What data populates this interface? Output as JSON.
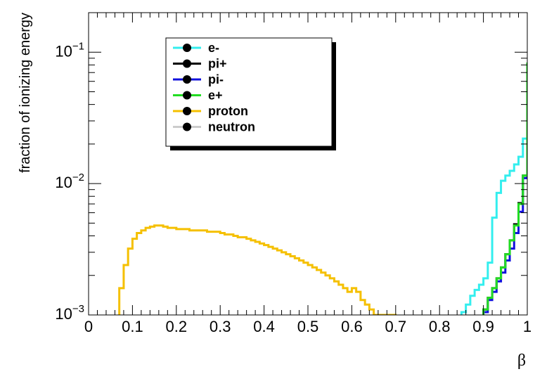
{
  "chart_data": {
    "type": "line",
    "title": "",
    "xlabel": "β",
    "ylabel": "fraction of ionizing energy",
    "x_scale": "linear",
    "y_scale": "log",
    "xlim": [
      0,
      1
    ],
    "ylim": [
      0.001,
      0.2
    ],
    "grid": false,
    "legend_position": "top-left",
    "x_ticks": [
      "0",
      "0.1",
      "0.2",
      "0.3",
      "0.4",
      "0.5",
      "0.6",
      "0.7",
      "0.8",
      "0.9",
      "1"
    ],
    "y_ticks": [
      {
        "value": 0.001,
        "base": "10",
        "exp": "−3"
      },
      {
        "value": 0.01,
        "base": "10",
        "exp": "−2"
      },
      {
        "value": 0.1,
        "base": "10",
        "exp": "−1"
      }
    ],
    "bin_width": 0.01,
    "series": [
      {
        "name": "e-",
        "color": "#33eeee",
        "bins_start": 0.84,
        "values": [
          0.0009,
          0.00105,
          0.0012,
          0.0014,
          0.00155,
          0.0017,
          0.0019,
          0.0025,
          0.0055,
          0.0085,
          0.0105,
          0.0115,
          0.0125,
          0.014,
          0.016,
          0.022,
          0.03,
          0.043,
          0.068,
          0.115
        ]
      },
      {
        "name": "pi+",
        "color": "#000000",
        "bins_start": 0.89,
        "values": [
          0.0009,
          0.0011,
          0.00135,
          0.0016,
          0.0019,
          0.0023,
          0.0029,
          0.0037,
          0.0049,
          0.0071,
          0.0115,
          0.048
        ]
      },
      {
        "name": "pi-",
        "color": "#1111dd",
        "bins_start": 0.89,
        "values": [
          0.0009,
          0.00105,
          0.0013,
          0.0015,
          0.0018,
          0.0021,
          0.0026,
          0.0032,
          0.0042,
          0.0061,
          0.011,
          0.046
        ]
      },
      {
        "name": "e+",
        "color": "#22dd22",
        "bins_start": 0.89,
        "values": [
          0.0009,
          0.0011,
          0.00135,
          0.0016,
          0.0019,
          0.0023,
          0.0029,
          0.0037,
          0.0048,
          0.007,
          0.0115,
          0.082
        ]
      },
      {
        "name": "proton",
        "color": "#f5c000",
        "bins_start": 0.06,
        "values": [
          0.0009,
          0.0016,
          0.0024,
          0.0032,
          0.0038,
          0.0042,
          0.0044,
          0.0046,
          0.0047,
          0.0048,
          0.0048,
          0.0047,
          0.0046,
          0.0046,
          0.0045,
          0.0045,
          0.0045,
          0.0044,
          0.0044,
          0.0044,
          0.0044,
          0.0043,
          0.0043,
          0.0043,
          0.0042,
          0.0041,
          0.0041,
          0.004,
          0.0039,
          0.0039,
          0.0038,
          0.0037,
          0.0036,
          0.0035,
          0.0034,
          0.0033,
          0.0032,
          0.0031,
          0.003,
          0.0029,
          0.0028,
          0.0027,
          0.0026,
          0.0025,
          0.0024,
          0.0023,
          0.0022,
          0.0021,
          0.002,
          0.0019,
          0.0018,
          0.0017,
          0.0016,
          0.0015,
          0.0016,
          0.0015,
          0.0013,
          0.0012,
          0.0011,
          0.001,
          0.001,
          0.001,
          0.001,
          0.001,
          0.0009,
          0.0009,
          0.0009,
          0.0009
        ]
      },
      {
        "name": "neutron",
        "color": "#cccccc",
        "bins_start": 0.0,
        "values": [
          0.0009,
          0.0009,
          0.0009,
          0.0009,
          0.0009,
          0.0009,
          0.0009,
          0.0009,
          0.0009,
          0.0009,
          0.0009,
          0.0009,
          0.0009,
          0.0009,
          0.0009,
          0.0009,
          0.0009,
          0.0009,
          0.0009,
          0.0009,
          0.0009,
          0.0009,
          0.0009,
          0.0009,
          0.0009,
          0.0009,
          0.0009,
          0.0009,
          0.0009,
          0.0009,
          0.0009,
          0.0009,
          0.0009,
          0.0009,
          0.0009,
          0.0009,
          0.0009,
          0.0009,
          0.0009,
          0.0009,
          0.0009,
          0.0009,
          0.0009,
          0.0009,
          0.0009,
          0.0009,
          0.0009,
          0.0009,
          0.0009,
          0.0009,
          0.0009,
          0.0009,
          0.0009,
          0.0009,
          0.0009,
          0.0009,
          0.0009,
          0.0009,
          0.0009,
          0.0009,
          0.0009,
          0.0009,
          0.0009,
          0.0009,
          0.0009,
          0.0009,
          0.0009,
          0.0009,
          0.0009,
          0.0009,
          0.0009,
          0.0009,
          0.0009,
          0.0009,
          0.0009,
          0.0009,
          0.0009,
          0.0009,
          0.0009,
          0.0009,
          0.0009,
          0.0009,
          0.0009,
          0.0009,
          0.0009,
          0.0009,
          0.0009,
          0.0009,
          0.0009,
          0.0009,
          0.0009,
          0.0009,
          0.0009,
          0.0009,
          0.0009,
          0.0009,
          0.0009,
          0.0009,
          0.0009,
          0.0009
        ]
      }
    ]
  }
}
